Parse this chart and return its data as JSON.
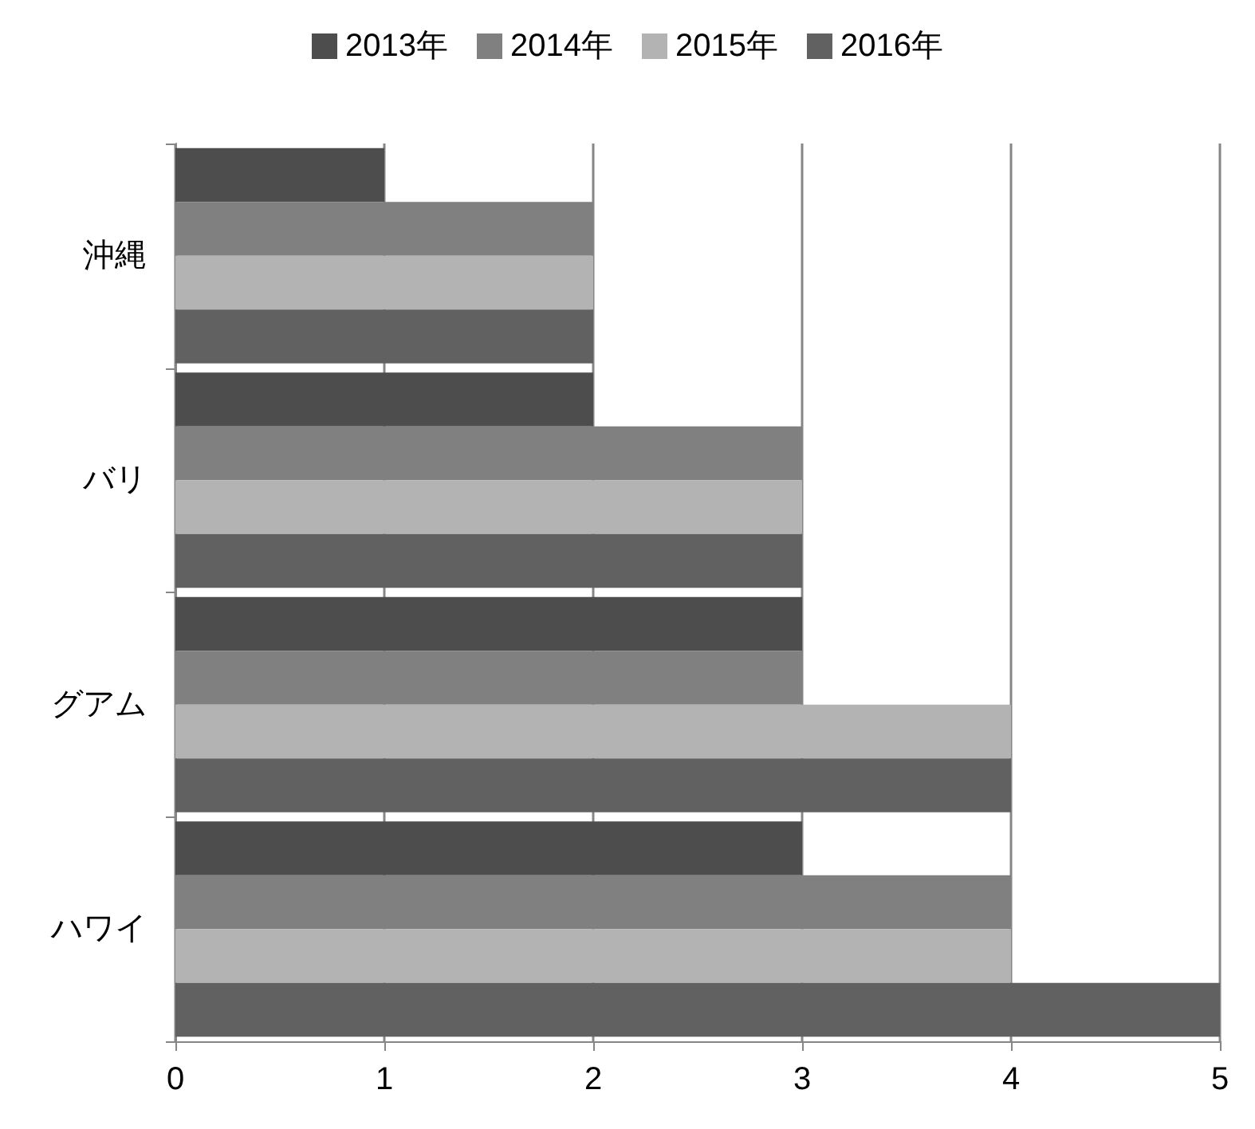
{
  "chart_data": {
    "type": "bar",
    "orientation": "horizontal",
    "categories": [
      "沖縄",
      "バリ",
      "グアム",
      "ハワイ"
    ],
    "series": [
      {
        "name": "2013年",
        "color": "#4d4d4d",
        "values": [
          1,
          2,
          3,
          3
        ]
      },
      {
        "name": "2014年",
        "color": "#808080",
        "values": [
          2,
          3,
          3,
          4
        ]
      },
      {
        "name": "2015年",
        "color": "#b3b3b3",
        "values": [
          2,
          3,
          4,
          4
        ]
      },
      {
        "name": "2016年",
        "color": "#616161",
        "values": [
          2,
          3,
          4,
          5
        ]
      }
    ],
    "xlim": [
      0,
      5
    ],
    "xticks": [
      0,
      1,
      2,
      3,
      4,
      5
    ],
    "grid": "x",
    "legend": "top"
  }
}
